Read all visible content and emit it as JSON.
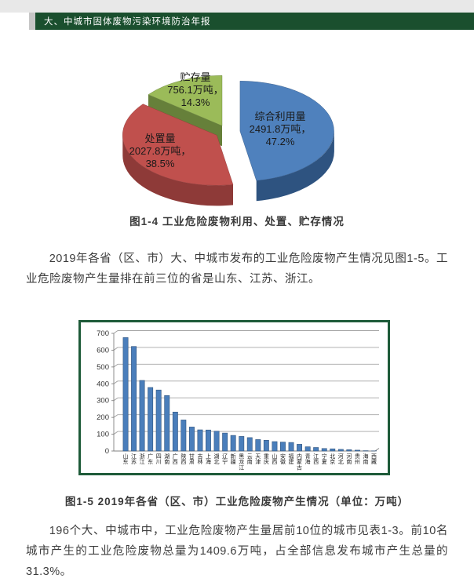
{
  "header": {
    "title": "大、中城市固体废物污染环境防治年报"
  },
  "figures": {
    "fig4_caption": "图1-4  工业危险废物利用、处置、贮存情况",
    "fig5_caption": "图1-5 2019年各省（区、市）工业危险废物产生情况（单位：万吨）"
  },
  "paragraphs": {
    "p1": "2019年各省（区、市）大、中城市发布的工业危险废物产生情况见图1-5。工业危险废物产生量排在前三位的省是山东、江苏、浙江。",
    "p2": "196个大、中城市中，工业危险废物产生量居前10位的城市见表1-3。前10名城市产生的工业危险废物总量为1409.6万吨，占全部信息发布城市产生总量的31.3%。"
  },
  "colors": {
    "header_green": "#1A4F2E",
    "chart_border_green": "#1E5B39",
    "bar_blue": "#4A7EBB",
    "pie_blue": "#4F81BD",
    "pie_red": "#C0504D",
    "pie_green": "#9BBB59"
  },
  "chart_data": [
    {
      "type": "pie",
      "title": "工业危险废物利用、处置、贮存情况",
      "unit": "万吨",
      "legend_position": "none",
      "style": "3d-exploded",
      "slices": [
        {
          "label": "综合利用量",
          "value": 2491.8,
          "pct": 47.2,
          "color": "#4F81BD",
          "side_color": "#2E5380"
        },
        {
          "label": "处置量",
          "value": 2027.8,
          "pct": 38.5,
          "color": "#C0504D",
          "side_color": "#8E3A38"
        },
        {
          "label": "贮存量",
          "value": 756.1,
          "pct": 14.3,
          "color": "#9BBB59",
          "side_color": "#66803A"
        }
      ]
    },
    {
      "type": "bar",
      "title": "2019年各省（区、市）工业危险废物产生情况",
      "unit": "万吨",
      "ylim": [
        0,
        700
      ],
      "ytick_step": 100,
      "grid": true,
      "bar_color": "#4A7EBB",
      "categories": [
        "山东",
        "江苏",
        "浙江",
        "广东",
        "四川",
        "湖南",
        "广西",
        "陕西",
        "甘肃",
        "吉林",
        "上海",
        "湖北",
        "辽宁",
        "新疆",
        "黑龙江",
        "云南",
        "天津",
        "重庆",
        "山西",
        "安徽",
        "福建",
        "内蒙古",
        "青海",
        "江西",
        "宁夏",
        "北京",
        "河北",
        "河南",
        "贵州",
        "海南",
        "西藏"
      ],
      "values": [
        675,
        622,
        420,
        378,
        363,
        330,
        232,
        185,
        143,
        126,
        125,
        118,
        107,
        93,
        87,
        80,
        68,
        64,
        56,
        53,
        51,
        40,
        25,
        21,
        15,
        13,
        10,
        8,
        5,
        2,
        1
      ]
    }
  ]
}
